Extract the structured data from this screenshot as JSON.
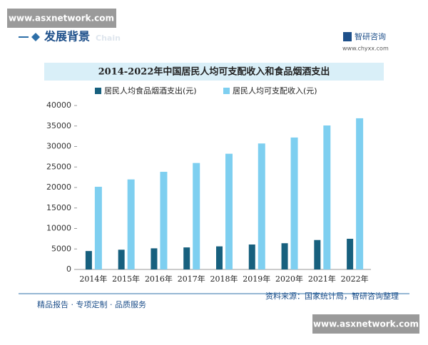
{
  "header": {
    "watermark_top": "www.asxnetwork.com",
    "section": "发展背景",
    "section_en": "Chain",
    "brand": "智研咨询",
    "brand_url": "www.chyxx.com"
  },
  "chart_data": {
    "type": "bar",
    "title": "2014-2022年中国居民人均可支配收入和食品烟酒支出",
    "categories": [
      "2014年",
      "2015年",
      "2016年",
      "2017年",
      "2018年",
      "2019年",
      "2020年",
      "2021年",
      "2022年"
    ],
    "series": [
      {
        "name": "居民人均食品烟酒支出(元)",
        "color": "#17607e",
        "values": [
          4494,
          4814,
          5151,
          5374,
          5631,
          6084,
          6397,
          7178,
          7481
        ]
      },
      {
        "name": "居民人均可支配收入(元)",
        "color": "#7ecff0",
        "values": [
          20167,
          21966,
          23821,
          25974,
          28228,
          30733,
          32189,
          35128,
          36883
        ]
      }
    ],
    "ylim": [
      0,
      40000
    ],
    "yticks": [
      0,
      5000,
      10000,
      15000,
      20000,
      25000,
      30000,
      35000,
      40000
    ],
    "legend": "top",
    "source": "资料来源：国家统计局，智研咨询整理"
  },
  "footer": {
    "slogan": "精品报告 · 专项定制 · 品质服务",
    "watermark_bottom": "www.asxnetwork.com"
  }
}
